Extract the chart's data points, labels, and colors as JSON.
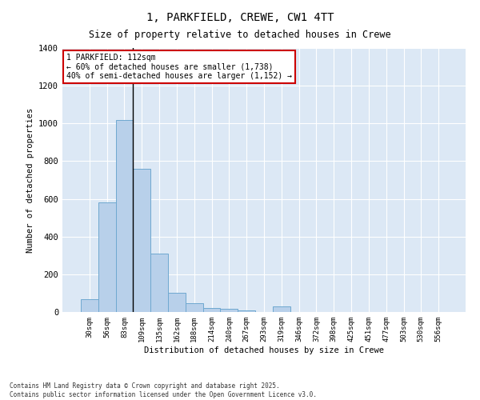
{
  "title": "1, PARKFIELD, CREWE, CW1 4TT",
  "subtitle": "Size of property relative to detached houses in Crewe",
  "xlabel": "Distribution of detached houses by size in Crewe",
  "ylabel": "Number of detached properties",
  "bar_color": "#b8d0ea",
  "bar_edge_color": "#6fa8d0",
  "background_color": "#dce8f5",
  "categories": [
    "30sqm",
    "56sqm",
    "83sqm",
    "109sqm",
    "135sqm",
    "162sqm",
    "188sqm",
    "214sqm",
    "240sqm",
    "267sqm",
    "293sqm",
    "319sqm",
    "346sqm",
    "372sqm",
    "398sqm",
    "425sqm",
    "451sqm",
    "477sqm",
    "503sqm",
    "530sqm",
    "556sqm"
  ],
  "values": [
    70,
    580,
    1020,
    760,
    310,
    100,
    45,
    22,
    18,
    10,
    0,
    30,
    0,
    0,
    0,
    0,
    0,
    0,
    0,
    0,
    0
  ],
  "annotation_line1": "1 PARKFIELD: 112sqm",
  "annotation_line2": "← 60% of detached houses are smaller (1,738)",
  "annotation_line3": "40% of semi-detached houses are larger (1,152) →",
  "annotation_box_color": "#ffffff",
  "annotation_edge_color": "#cc0000",
  "vline_bar_index": 3,
  "ylim": [
    0,
    1400
  ],
  "yticks": [
    0,
    200,
    400,
    600,
    800,
    1000,
    1200,
    1400
  ],
  "footer_line1": "Contains HM Land Registry data © Crown copyright and database right 2025.",
  "footer_line2": "Contains public sector information licensed under the Open Government Licence v3.0.",
  "figsize": [
    6.0,
    5.0
  ],
  "dpi": 100
}
